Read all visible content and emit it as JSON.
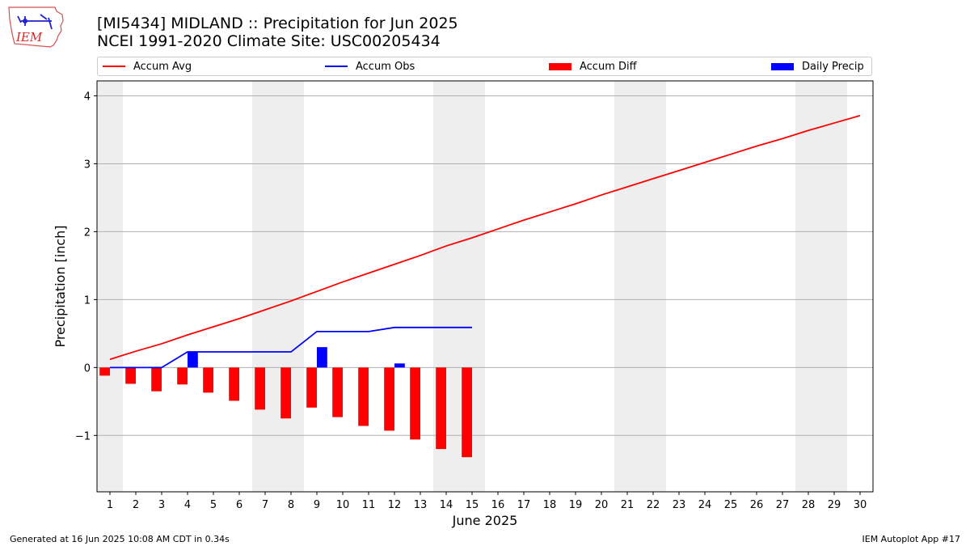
{
  "header": {
    "title_line1": "[MI5434] MIDLAND :: Precipitation for Jun 2025",
    "title_line2": "NCEI 1991-2020 Climate Site: USC00205434"
  },
  "logo": {
    "text": "IEM",
    "icon": "iowa-state-outline-logo"
  },
  "footer": {
    "left": "Generated at 16 Jun 2025 10:08 AM CDT in 0.34s",
    "right": "IEM Autoplot App #17"
  },
  "colors": {
    "accum_avg": "#ff0000",
    "accum_obs": "#0000ff",
    "accum_diff": "#ff0000",
    "daily_precip": "#0000ff",
    "weekend_shade": "#eeeeee",
    "grid": "#b0b0b0"
  },
  "chart_data": {
    "type": "bar",
    "title": "[MI5434] MIDLAND :: Precipitation for Jun 2025",
    "subtitle": "NCEI 1991-2020 Climate Site: USC00205434",
    "xlabel": "June 2025",
    "ylabel": "Precipitation [inch]",
    "xlim": [
      0.5,
      30.5
    ],
    "ylim": [
      -1.83,
      4.22
    ],
    "y_ticks": [
      -1,
      0,
      1,
      2,
      3,
      4
    ],
    "y_tick_labels": [
      "−1",
      "0",
      "1",
      "2",
      "3",
      "4"
    ],
    "x_ticks": [
      1,
      2,
      3,
      4,
      5,
      6,
      7,
      8,
      9,
      10,
      11,
      12,
      13,
      14,
      15,
      16,
      17,
      18,
      19,
      20,
      21,
      22,
      23,
      24,
      25,
      26,
      27,
      28,
      29,
      30
    ],
    "grid": "horizontal",
    "legend_position": "top",
    "shaded_days": [
      [
        1,
        1
      ],
      [
        7,
        8
      ],
      [
        14,
        15
      ],
      [
        21,
        22
      ],
      [
        28,
        29
      ]
    ],
    "series": [
      {
        "name": "Accum Avg",
        "kind": "line",
        "days": [
          1,
          2,
          3,
          4,
          5,
          6,
          7,
          8,
          9,
          10,
          11,
          12,
          13,
          14,
          15,
          16,
          17,
          18,
          19,
          20,
          21,
          22,
          23,
          24,
          25,
          26,
          27,
          28,
          29,
          30
        ],
        "values": [
          0.12,
          0.24,
          0.35,
          0.48,
          0.6,
          0.72,
          0.85,
          0.98,
          1.12,
          1.26,
          1.39,
          1.52,
          1.65,
          1.79,
          1.91,
          2.04,
          2.17,
          2.29,
          2.41,
          2.54,
          2.66,
          2.78,
          2.9,
          3.02,
          3.14,
          3.26,
          3.37,
          3.49,
          3.6,
          3.71
        ]
      },
      {
        "name": "Accum Obs",
        "kind": "line",
        "days": [
          1,
          2,
          3,
          4,
          5,
          6,
          7,
          8,
          9,
          10,
          11,
          12,
          13,
          14,
          15
        ],
        "values": [
          0.0,
          0.0,
          0.0,
          0.23,
          0.23,
          0.23,
          0.23,
          0.23,
          0.53,
          0.53,
          0.53,
          0.59,
          0.59,
          0.59,
          0.59
        ]
      },
      {
        "name": "Accum Diff",
        "kind": "bar",
        "offset": -0.2,
        "days": [
          1,
          2,
          3,
          4,
          5,
          6,
          7,
          8,
          9,
          10,
          11,
          12,
          13,
          14,
          15
        ],
        "values": [
          -0.12,
          -0.24,
          -0.35,
          -0.25,
          -0.37,
          -0.49,
          -0.62,
          -0.75,
          -0.59,
          -0.73,
          -0.86,
          -0.93,
          -1.06,
          -1.2,
          -1.32
        ]
      },
      {
        "name": "Daily Precip",
        "kind": "bar",
        "offset": 0.2,
        "days": [
          4,
          9,
          12
        ],
        "values": [
          0.23,
          0.3,
          0.06
        ]
      }
    ]
  }
}
